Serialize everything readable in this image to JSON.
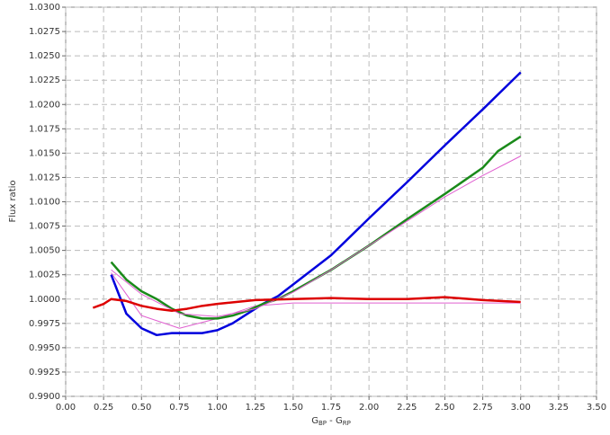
{
  "chart_data": {
    "type": "line",
    "ylabel": "Flux ratio",
    "xlabel_parts": [
      "G",
      "BP",
      " - ",
      "G",
      "RP"
    ],
    "xlim": [
      0,
      3.5
    ],
    "xticks": [
      {
        "value": 0,
        "label": "0.00"
      },
      0.25,
      {
        "value": 0.5,
        "label": "0.50"
      },
      0.75,
      {
        "value": 1,
        "label": "1.00"
      },
      1.25,
      {
        "value": 1.5,
        "label": "1.50"
      },
      1.75,
      {
        "value": 2,
        "label": "2.00"
      },
      2.25,
      {
        "value": 2.5,
        "label": "2.50"
      },
      2.75,
      {
        "value": 3,
        "label": "3.00"
      },
      3.25,
      {
        "value": 3.5,
        "label": "3.50"
      }
    ],
    "ylim": [
      0.99,
      1.03
    ],
    "yticks": [
      {
        "value": 0.99,
        "label": "0.9900"
      },
      0.9925,
      {
        "value": 0.995,
        "label": "0.9950"
      },
      0.9975,
      {
        "value": 1,
        "label": "1.0000"
      },
      1.0025,
      {
        "value": 1.005,
        "label": "1.0050"
      },
      1.0075,
      {
        "value": 1.01,
        "label": "1.0100"
      },
      1.0125,
      {
        "value": 1.015,
        "label": "1.0150"
      },
      1.0175,
      {
        "value": 1.02,
        "label": "1.0200"
      },
      1.0225,
      {
        "value": 1.025,
        "label": "1.0250"
      },
      1.0275,
      {
        "value": 1.03,
        "label": "1.0300"
      }
    ],
    "grid": true,
    "series": [
      {
        "color": "#e060d0",
        "width": 1,
        "x": [
          0.3,
          0.5,
          0.75,
          1.0,
          1.25,
          1.5,
          1.75,
          2.0,
          2.5,
          3.0
        ],
        "values": [
          1.0027,
          0.9983,
          0.997,
          0.998,
          0.9993,
          0.9996,
          0.9996,
          0.9996,
          0.9996,
          0.9996
        ]
      },
      {
        "color": "#0000dd",
        "width": 2.5,
        "x": [
          0.3,
          0.4,
          0.5,
          0.6,
          0.7,
          0.8,
          0.9,
          1.0,
          1.1,
          1.2,
          1.3,
          1.4,
          1.5,
          1.75,
          2.0,
          2.25,
          2.5,
          2.75,
          3.0
        ],
        "values": [
          1.0025,
          0.9985,
          0.997,
          0.9963,
          0.9965,
          0.9965,
          0.9965,
          0.9968,
          0.9975,
          0.9985,
          0.9995,
          1.0003,
          1.0015,
          1.0045,
          1.0083,
          1.012,
          1.0158,
          1.0195,
          1.0233
        ]
      },
      {
        "color": "#1a8a1a",
        "width": 2.5,
        "x": [
          0.3,
          0.4,
          0.5,
          0.6,
          0.7,
          0.8,
          0.9,
          1.0,
          1.1,
          1.2,
          1.3,
          1.4,
          1.5,
          1.75,
          2.0,
          2.25,
          2.5,
          2.75,
          2.85,
          3.0
        ],
        "values": [
          1.0038,
          1.002,
          1.0008,
          1.0,
          0.999,
          0.9983,
          0.998,
          0.998,
          0.9983,
          0.9988,
          0.9995,
          1.0,
          1.0008,
          1.003,
          1.0055,
          1.0082,
          1.0108,
          1.0135,
          1.0152,
          1.0167
        ]
      },
      {
        "color": "#e060d0",
        "width": 1,
        "x": [
          0.3,
          0.5,
          0.75,
          1.0,
          1.25,
          1.5,
          1.75,
          2.0,
          2.5,
          2.75,
          3.0
        ],
        "values": [
          1.003,
          1.0005,
          0.9985,
          0.9982,
          0.999,
          1.0007,
          1.003,
          1.0055,
          1.0105,
          1.0127,
          1.0147
        ]
      },
      {
        "color": "#dd0000",
        "width": 2.5,
        "x": [
          0.18,
          0.25,
          0.3,
          0.4,
          0.5,
          0.6,
          0.7,
          0.8,
          0.9,
          1.0,
          1.25,
          1.5,
          1.75,
          2.0,
          2.25,
          2.5,
          2.75,
          3.0
        ],
        "values": [
          0.9991,
          0.9995,
          1.0,
          0.9998,
          0.9993,
          0.999,
          0.9988,
          0.999,
          0.9993,
          0.9995,
          0.9999,
          1.0,
          1.0001,
          1.0,
          1.0,
          1.0002,
          0.9999,
          0.9997
        ]
      }
    ]
  }
}
